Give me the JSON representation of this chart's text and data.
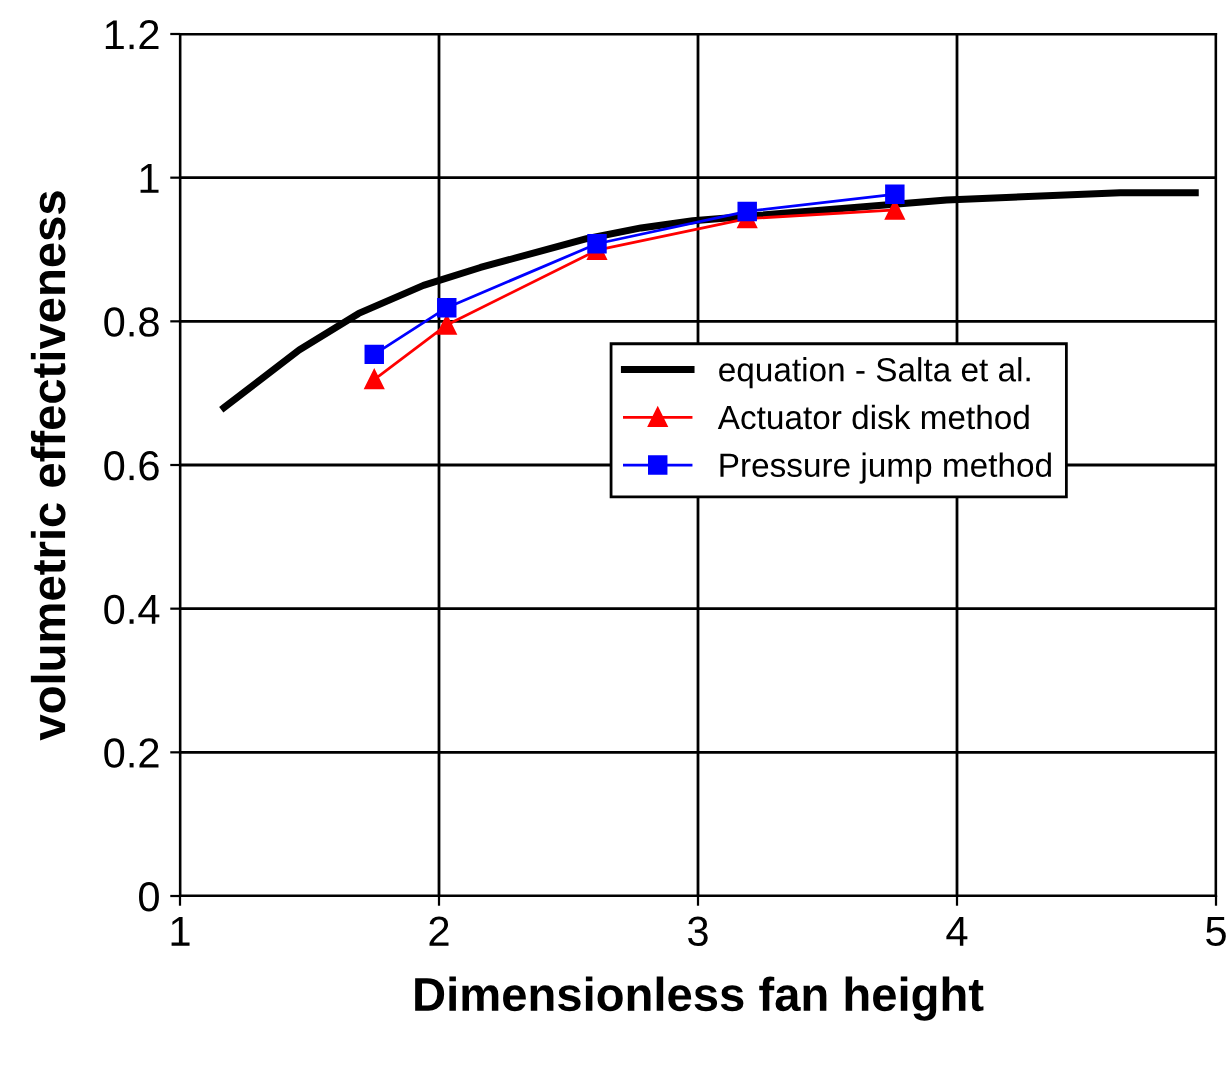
{
  "chart_data": {
    "type": "line",
    "xlabel": "Dimensionless fan height",
    "ylabel": "volumetric effectiveness",
    "xlim": [
      1,
      5
    ],
    "xticks": [
      1,
      2,
      3,
      4,
      5
    ],
    "ylim": [
      0,
      1.2
    ],
    "yticks": [
      0,
      0.2,
      0.4,
      0.6,
      0.8,
      1,
      1.2
    ],
    "grid": true,
    "legend": "right",
    "series": [
      {
        "name": "equation - Salta et al.",
        "color": "#000000",
        "marker": "none",
        "x": [
          1.17,
          1.46,
          1.69,
          1.94,
          2.16,
          2.57,
          2.78,
          2.98,
          3.96,
          4.63,
          4.92
        ],
        "values": [
          0.68,
          0.76,
          0.811,
          0.85,
          0.875,
          0.915,
          0.93,
          0.94,
          0.969,
          0.979,
          0.979
        ]
      },
      {
        "name": "Actuator disk method",
        "color": "#ff0000",
        "marker": "triangle",
        "x": [
          1.75,
          2.03,
          2.61,
          3.19,
          3.76
        ],
        "values": [
          0.719,
          0.795,
          0.899,
          0.943,
          0.955
        ]
      },
      {
        "name": "Pressure jump method",
        "color": "#0000ff",
        "marker": "square",
        "x": [
          1.75,
          2.03,
          2.61,
          3.19,
          3.76
        ],
        "values": [
          0.754,
          0.819,
          0.908,
          0.953,
          0.977
        ]
      }
    ]
  }
}
